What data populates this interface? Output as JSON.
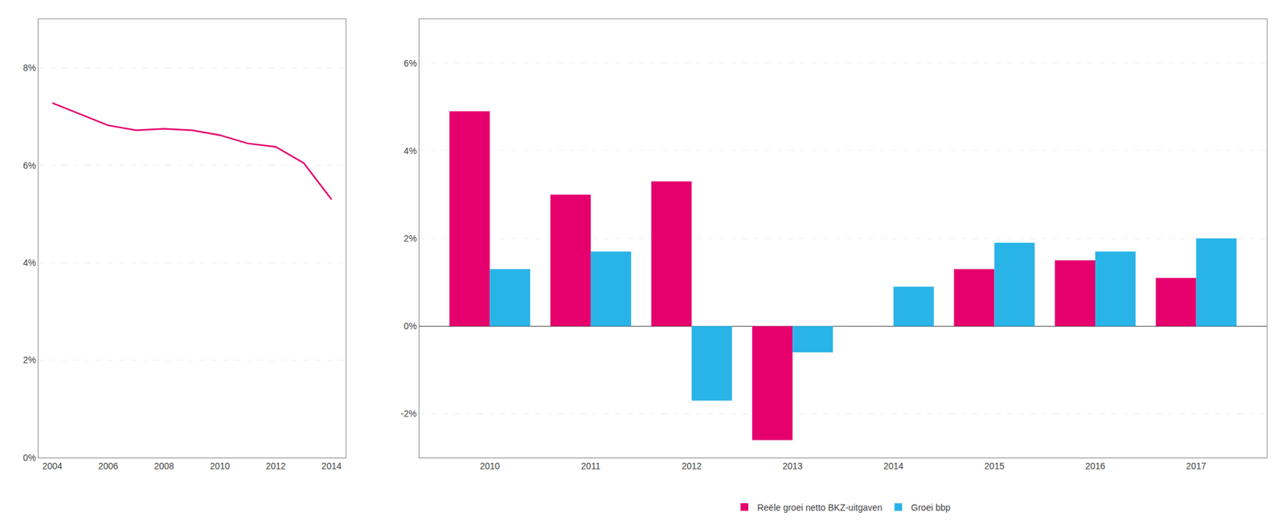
{
  "chart_data": [
    {
      "type": "line",
      "x": [
        2004,
        2005,
        2006,
        2007,
        2008,
        2009,
        2010,
        2011,
        2012,
        2013,
        2014
      ],
      "values": [
        0.0728,
        0.0705,
        0.0682,
        0.0672,
        0.0675,
        0.0672,
        0.0662,
        0.0645,
        0.0638,
        0.0605,
        0.053
      ],
      "color": "#e5006e",
      "xlim": [
        2003.5,
        2014.5
      ],
      "xticks": [
        2004,
        2006,
        2008,
        2010,
        2012,
        2014
      ],
      "ylim": [
        0.0,
        0.09
      ],
      "yticks": [
        {
          "value": 0.0,
          "label": "0%"
        },
        {
          "value": 0.02,
          "label": "2%"
        },
        {
          "value": 0.04,
          "label": "4%"
        },
        {
          "value": 0.06,
          "label": "6%"
        },
        {
          "value": 0.08,
          "label": "8%"
        }
      ],
      "grid": true
    },
    {
      "type": "bar",
      "x": [
        2010,
        2011,
        2012,
        2013,
        2014,
        2015,
        2016,
        2017
      ],
      "series": [
        {
          "name": "Reële groei netto BKZ-uitgaven",
          "color": "#e5006e",
          "values": [
            0.049,
            0.03,
            0.033,
            -0.026,
            0.0,
            0.013,
            0.015,
            0.011
          ]
        },
        {
          "name": "Groei bbp",
          "color": "#29b4e8",
          "values": [
            0.013,
            0.017,
            -0.017,
            -0.006,
            0.009,
            0.019,
            0.017,
            0.02
          ]
        }
      ],
      "xlim": [
        2009.3,
        2017.7
      ],
      "xticks": [
        2010,
        2011,
        2012,
        2013,
        2014,
        2015,
        2016,
        2017
      ],
      "ylim": [
        -0.03,
        0.07
      ],
      "yticks": [
        {
          "value": -0.02,
          "label": "-2%"
        },
        {
          "value": 0.0,
          "label": "0%"
        },
        {
          "value": 0.02,
          "label": "2%"
        },
        {
          "value": 0.04,
          "label": "4%"
        },
        {
          "value": 0.06,
          "label": "6%"
        }
      ],
      "grid": true,
      "legend": "bottom"
    }
  ]
}
